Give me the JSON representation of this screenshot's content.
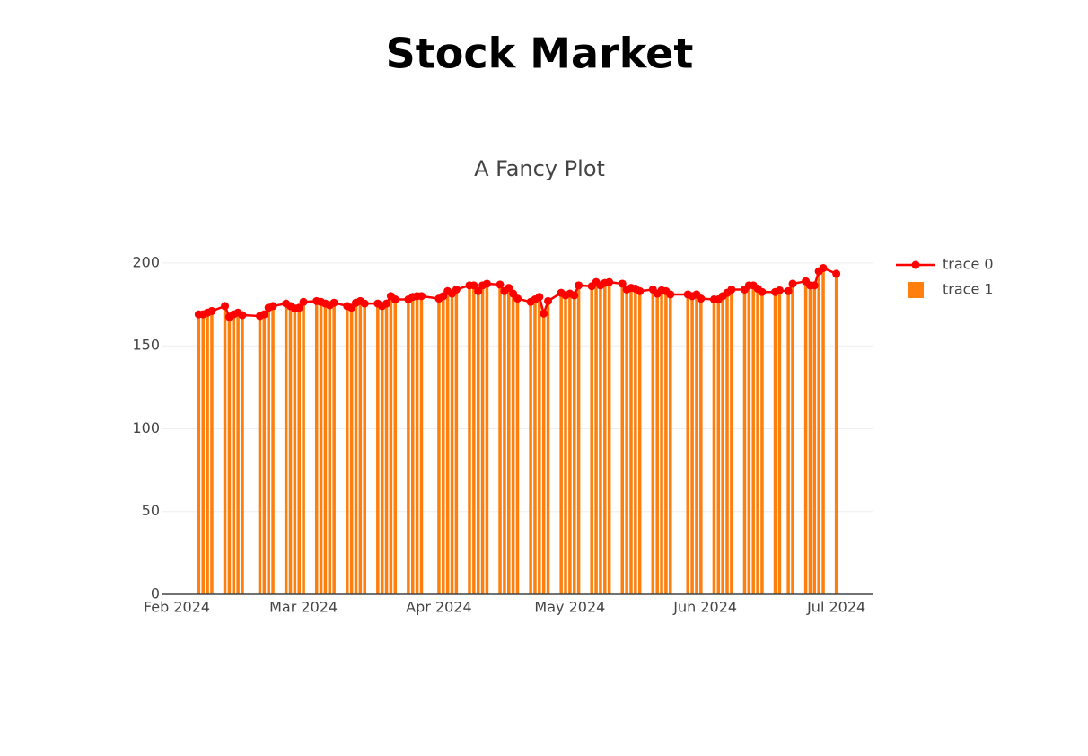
{
  "chart_data": {
    "type": "bar_line",
    "title": "Stock Market",
    "subtitle": "A Fancy Plot",
    "x": [
      "2024-02-06",
      "2024-02-07",
      "2024-02-08",
      "2024-02-09",
      "2024-02-12",
      "2024-02-13",
      "2024-02-14",
      "2024-02-15",
      "2024-02-16",
      "2024-02-20",
      "2024-02-21",
      "2024-02-22",
      "2024-02-23",
      "2024-02-26",
      "2024-02-27",
      "2024-02-28",
      "2024-02-29",
      "2024-03-01",
      "2024-03-04",
      "2024-03-05",
      "2024-03-06",
      "2024-03-07",
      "2024-03-08",
      "2024-03-11",
      "2024-03-12",
      "2024-03-13",
      "2024-03-14",
      "2024-03-15",
      "2024-03-18",
      "2024-03-19",
      "2024-03-20",
      "2024-03-21",
      "2024-03-22",
      "2024-03-25",
      "2024-03-26",
      "2024-03-27",
      "2024-03-28",
      "2024-04-01",
      "2024-04-02",
      "2024-04-03",
      "2024-04-04",
      "2024-04-05",
      "2024-04-08",
      "2024-04-09",
      "2024-04-10",
      "2024-04-11",
      "2024-04-12",
      "2024-04-15",
      "2024-04-16",
      "2024-04-17",
      "2024-04-18",
      "2024-04-19",
      "2024-04-22",
      "2024-04-23",
      "2024-04-24",
      "2024-04-25",
      "2024-04-26",
      "2024-04-29",
      "2024-04-30",
      "2024-05-01",
      "2024-05-02",
      "2024-05-03",
      "2024-05-06",
      "2024-05-07",
      "2024-05-08",
      "2024-05-09",
      "2024-05-10",
      "2024-05-13",
      "2024-05-14",
      "2024-05-15",
      "2024-05-16",
      "2024-05-17",
      "2024-05-20",
      "2024-05-21",
      "2024-05-22",
      "2024-05-23",
      "2024-05-24",
      "2024-05-28",
      "2024-05-29",
      "2024-05-30",
      "2024-05-31",
      "2024-06-03",
      "2024-06-04",
      "2024-06-05",
      "2024-06-06",
      "2024-06-07",
      "2024-06-10",
      "2024-06-11",
      "2024-06-12",
      "2024-06-13",
      "2024-06-14",
      "2024-06-17",
      "2024-06-18",
      "2024-06-20",
      "2024-06-21",
      "2024-06-24",
      "2024-06-25",
      "2024-06-26",
      "2024-06-27",
      "2024-06-28",
      "2024-07-01"
    ],
    "series": [
      {
        "name": "trace 0",
        "type": "line",
        "color": "#ff0000",
        "values": [
          169,
          169,
          170,
          171,
          174,
          167.5,
          169,
          170,
          168.5,
          168,
          169,
          173,
          174,
          175.5,
          174,
          172.5,
          173,
          176.5,
          177,
          176.5,
          175.5,
          174.5,
          176,
          174,
          173,
          176,
          177,
          175.5,
          175.5,
          174,
          175.5,
          180,
          178,
          178,
          179.5,
          180,
          180,
          178.5,
          180,
          183,
          181.5,
          184,
          186.5,
          186.5,
          183,
          186.5,
          187.5,
          187,
          183,
          185,
          181.5,
          178.5,
          176.5,
          178,
          179.5,
          169.5,
          177,
          182,
          180.5,
          181.5,
          180.5,
          186.5,
          186,
          188.5,
          186.5,
          188,
          188.5,
          187.5,
          184,
          185,
          184.5,
          183,
          184,
          181.5,
          183.5,
          183,
          181,
          181,
          180,
          181,
          178.5,
          178,
          178,
          180,
          182,
          184,
          184,
          186.5,
          186.5,
          184.5,
          182.5,
          182.5,
          183.5,
          183,
          187.5,
          189,
          186.5,
          186.5,
          195,
          197,
          193.5
        ]
      },
      {
        "name": "trace 1",
        "type": "bar",
        "color": "#ff7f0e",
        "values": [
          169,
          169,
          170,
          171,
          174,
          167.5,
          169,
          170,
          168.5,
          168,
          169,
          173,
          174,
          175.5,
          174,
          172.5,
          173,
          176.5,
          177,
          176.5,
          175.5,
          174.5,
          176,
          174,
          173,
          176,
          177,
          175.5,
          175.5,
          174,
          175.5,
          180,
          178,
          178,
          179.5,
          180,
          180,
          178.5,
          180,
          183,
          181.5,
          184,
          186.5,
          186.5,
          183,
          186.5,
          187.5,
          187,
          183,
          185,
          181.5,
          178.5,
          176.5,
          178,
          179.5,
          169.5,
          177,
          182,
          180.5,
          181.5,
          180.5,
          186.5,
          186,
          188.5,
          186.5,
          188,
          188.5,
          187.5,
          184,
          185,
          184.5,
          183,
          184,
          181.5,
          183.5,
          183,
          181,
          181,
          180,
          181,
          178.5,
          178,
          178,
          180,
          182,
          184,
          184,
          186.5,
          186.5,
          184.5,
          182.5,
          182.5,
          183.5,
          183,
          187.5,
          189,
          186.5,
          186.5,
          195,
          197,
          193.5
        ]
      }
    ],
    "xlim": [
      "2024-01-28T12:00",
      "2024-07-09T12:00"
    ],
    "xticks": [
      {
        "value": "2024-02-01",
        "label": "Feb 2024"
      },
      {
        "value": "2024-03-01",
        "label": "Mar 2024"
      },
      {
        "value": "2024-04-01",
        "label": "Apr 2024"
      },
      {
        "value": "2024-05-01",
        "label": "May 2024"
      },
      {
        "value": "2024-06-01",
        "label": "Jun 2024"
      },
      {
        "value": "2024-07-01",
        "label": "Jul 2024"
      }
    ],
    "ylim": [
      0,
      207
    ],
    "yticks": [
      0,
      50,
      100,
      150,
      200
    ],
    "grid": true,
    "legend": "right"
  }
}
